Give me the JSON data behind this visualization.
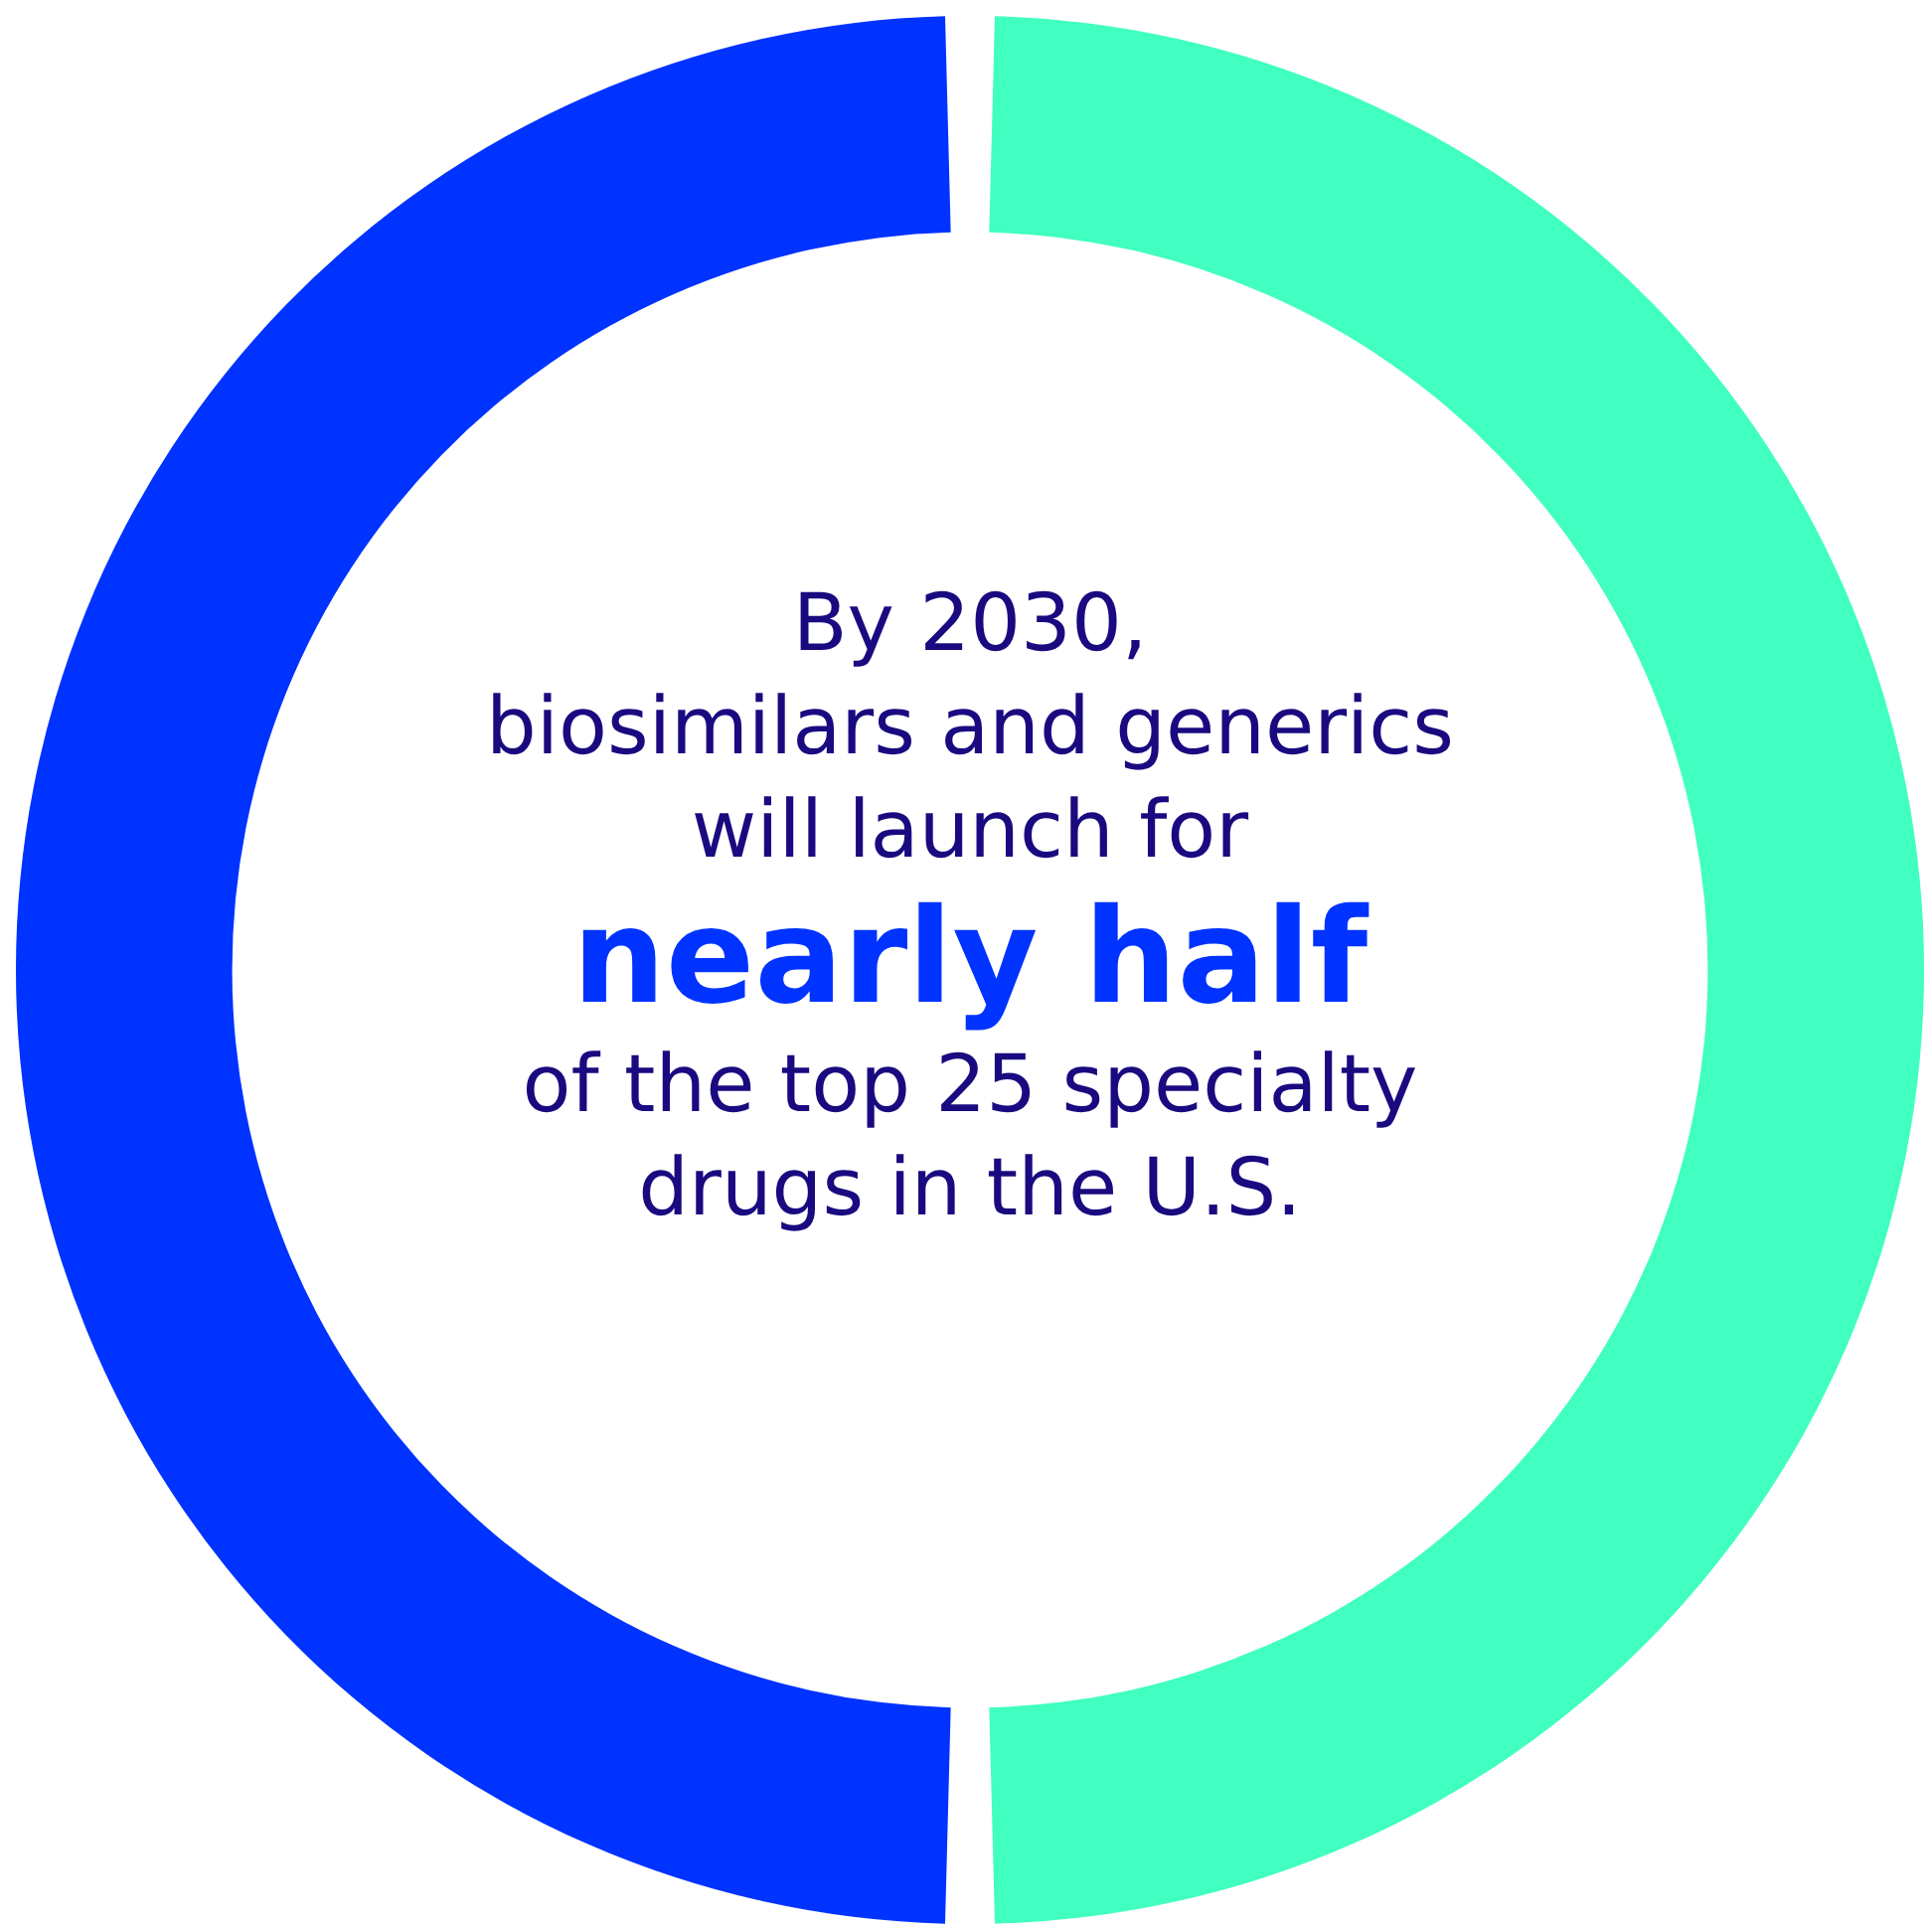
{
  "chart_data": {
    "type": "donut",
    "categories": [
      null,
      null
    ],
    "values": [
      50,
      50
    ],
    "colors": [
      "#40ffc0",
      "#0033ff"
    ],
    "annotations": [
      "By 2030,\nbiosimilars and generics\nwill launch for",
      "nearly half",
      "of the top 25 specialty\ndrugs in the U.S."
    ],
    "legend": false
  }
}
